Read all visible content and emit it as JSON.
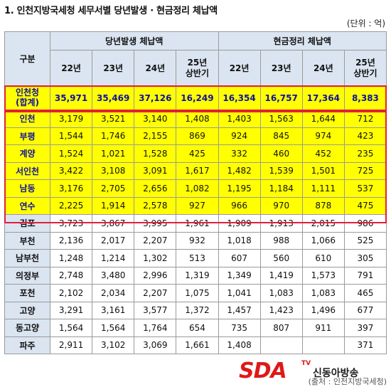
{
  "title": "1. 인천지방국세청 세무서별 당년발생 · 현금정리 체납액",
  "unit": "(단위 : 억)",
  "table": {
    "corner": "구분",
    "group1": "당년발생 체납액",
    "group2": "현금정리 체납액",
    "years": [
      "22년",
      "23년",
      "24년",
      "25년\n상반기"
    ],
    "year_line1": "25년",
    "year_line2": "상반기",
    "total": {
      "name_line1": "인천청",
      "name_line2": "(합계)",
      "values": [
        "35,971",
        "35,469",
        "37,126",
        "16,249",
        "16,354",
        "16,757",
        "17,364",
        "8,383"
      ]
    },
    "rows": [
      {
        "name": "인천",
        "values": [
          "3,179",
          "3,521",
          "3,140",
          "1,408",
          "1,403",
          "1,563",
          "1,644",
          "712"
        ]
      },
      {
        "name": "부평",
        "values": [
          "1,544",
          "1,746",
          "2,155",
          "869",
          "924",
          "845",
          "974",
          "423"
        ]
      },
      {
        "name": "계양",
        "values": [
          "1,524",
          "1,021",
          "1,528",
          "425",
          "332",
          "460",
          "452",
          "235"
        ]
      },
      {
        "name": "서인천",
        "values": [
          "3,422",
          "3,108",
          "3,091",
          "1,617",
          "1,482",
          "1,539",
          "1,501",
          "725"
        ]
      },
      {
        "name": "남동",
        "values": [
          "3,176",
          "2,705",
          "2,656",
          "1,082",
          "1,195",
          "1,184",
          "1,111",
          "537"
        ]
      },
      {
        "name": "연수",
        "values": [
          "2,225",
          "1,914",
          "2,578",
          "927",
          "966",
          "970",
          "878",
          "475"
        ]
      },
      {
        "name": "김포",
        "values": [
          "3,723",
          "3,867",
          "3,995",
          "1,961",
          "1,909",
          "1,913",
          "2,015",
          "986"
        ]
      },
      {
        "name": "부천",
        "values": [
          "2,136",
          "2,017",
          "2,207",
          "932",
          "1,018",
          "988",
          "1,066",
          "525"
        ]
      },
      {
        "name": "남부천",
        "values": [
          "1,248",
          "1,214",
          "1,302",
          "513",
          "607",
          "560",
          "610",
          "305"
        ]
      },
      {
        "name": "의정부",
        "values": [
          "2,748",
          "3,480",
          "2,996",
          "1,319",
          "1,349",
          "1,419",
          "1,573",
          "791"
        ]
      },
      {
        "name": "포천",
        "values": [
          "2,102",
          "2,034",
          "2,207",
          "1,075",
          "1,041",
          "1,083",
          "1,083",
          "465"
        ]
      },
      {
        "name": "고양",
        "values": [
          "3,291",
          "3,161",
          "3,577",
          "1,372",
          "1,457",
          "1,423",
          "1,496",
          "677"
        ]
      },
      {
        "name": "동고양",
        "values": [
          "1,564",
          "1,564",
          "1,764",
          "654",
          "735",
          "807",
          "911",
          "397"
        ]
      },
      {
        "name": "파주",
        "values": [
          "2,911",
          "3,102",
          "3,069",
          "1,661",
          "1,408",
          "",
          "",
          "371"
        ]
      }
    ]
  },
  "source": "(출처 : 인천지방국세청)",
  "watermark": {
    "logo": "SDA",
    "tv": "TV",
    "name": "신동아방송",
    "colors": {
      "logo": "#e01818"
    }
  },
  "colors": {
    "header_bg": "#dbe5f1",
    "highlight": "#ffff00",
    "highlight_text": "#1010a0",
    "box_border": "#e0203a"
  }
}
